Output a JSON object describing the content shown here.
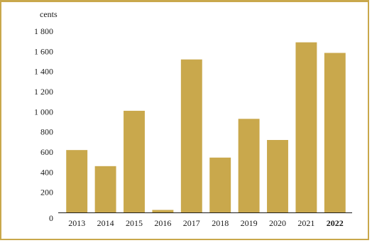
{
  "chart_data": {
    "type": "bar",
    "unit_label": "cents",
    "categories": [
      "2013",
      "2014",
      "2015",
      "2016",
      "2017",
      "2018",
      "2019",
      "2020",
      "2021",
      "2022"
    ],
    "highlight_category": "2022",
    "values": [
      620,
      460,
      1010,
      25,
      1520,
      545,
      930,
      720,
      1690,
      1585
    ],
    "ylim": [
      0,
      1800
    ],
    "yticks": [
      {
        "value": 0,
        "label": "0"
      },
      {
        "value": 200,
        "label": "200"
      },
      {
        "value": 400,
        "label": "400"
      },
      {
        "value": 600,
        "label": "600"
      },
      {
        "value": 800,
        "label": "800"
      },
      {
        "value": 1000,
        "label": "1 000"
      },
      {
        "value": 1200,
        "label": "1 200"
      },
      {
        "value": 1400,
        "label": "1 400"
      },
      {
        "value": 1600,
        "label": "1 600"
      },
      {
        "value": 1800,
        "label": "1 800"
      }
    ],
    "grid": false,
    "bar_color": "#c9a84c",
    "frame_color": "#c9a84c",
    "axis_color": "#1a1a1a"
  }
}
